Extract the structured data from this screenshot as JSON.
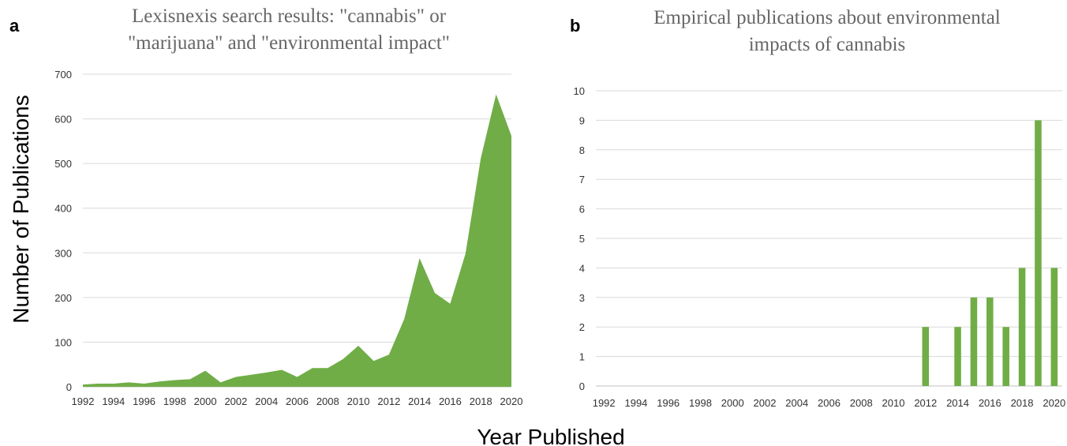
{
  "ylabel": "Number of Publications",
  "xlabel": "Year Published",
  "colors": {
    "series": "#70ad47"
  },
  "chart_data": [
    {
      "panel": "a",
      "type": "area",
      "title_lines": [
        "Lexisnexis search results: \"cannabis\" or",
        "\"marijuana\" and \"environmental impact\""
      ],
      "x": [
        1992,
        1993,
        1994,
        1995,
        1996,
        1997,
        1998,
        1999,
        2000,
        2001,
        2002,
        2003,
        2004,
        2005,
        2006,
        2007,
        2008,
        2009,
        2010,
        2011,
        2012,
        2013,
        2014,
        2015,
        2016,
        2017,
        2018,
        2019,
        2020
      ],
      "values": [
        5,
        7,
        7,
        10,
        7,
        12,
        15,
        17,
        36,
        10,
        22,
        27,
        32,
        38,
        22,
        42,
        42,
        62,
        92,
        58,
        72,
        152,
        288,
        210,
        186,
        298,
        512,
        655,
        562
      ],
      "ylim": [
        0,
        700
      ],
      "yticks": [
        "0",
        "100",
        "200",
        "300",
        "400",
        "500",
        "600",
        "700"
      ],
      "xticks": [
        "1992",
        "1994",
        "1996",
        "1998",
        "2000",
        "2002",
        "2004",
        "2006",
        "2008",
        "2010",
        "2012",
        "2014",
        "2016",
        "2018",
        "2020"
      ]
    },
    {
      "panel": "b",
      "type": "bar",
      "title_lines": [
        "Empirical publications about environmental",
        "impacts of cannabis"
      ],
      "categories": [
        1992,
        1993,
        1994,
        1995,
        1996,
        1997,
        1998,
        1999,
        2000,
        2001,
        2002,
        2003,
        2004,
        2005,
        2006,
        2007,
        2008,
        2009,
        2010,
        2011,
        2012,
        2013,
        2014,
        2015,
        2016,
        2017,
        2018,
        2019,
        2020
      ],
      "values": [
        0,
        0,
        0,
        0,
        0,
        0,
        0,
        0,
        0,
        0,
        0,
        0,
        0,
        0,
        0,
        0,
        0,
        0,
        0,
        0,
        2,
        0,
        2,
        3,
        3,
        2,
        4,
        9,
        4
      ],
      "ylim": [
        0,
        10
      ],
      "yticks": [
        "0",
        "1",
        "2",
        "3",
        "4",
        "5",
        "6",
        "7",
        "8",
        "9",
        "10"
      ],
      "xticks": [
        "1992",
        "1994",
        "1996",
        "1998",
        "2000",
        "2002",
        "2004",
        "2006",
        "2008",
        "2010",
        "2012",
        "2014",
        "2016",
        "2018",
        "2020"
      ]
    }
  ]
}
